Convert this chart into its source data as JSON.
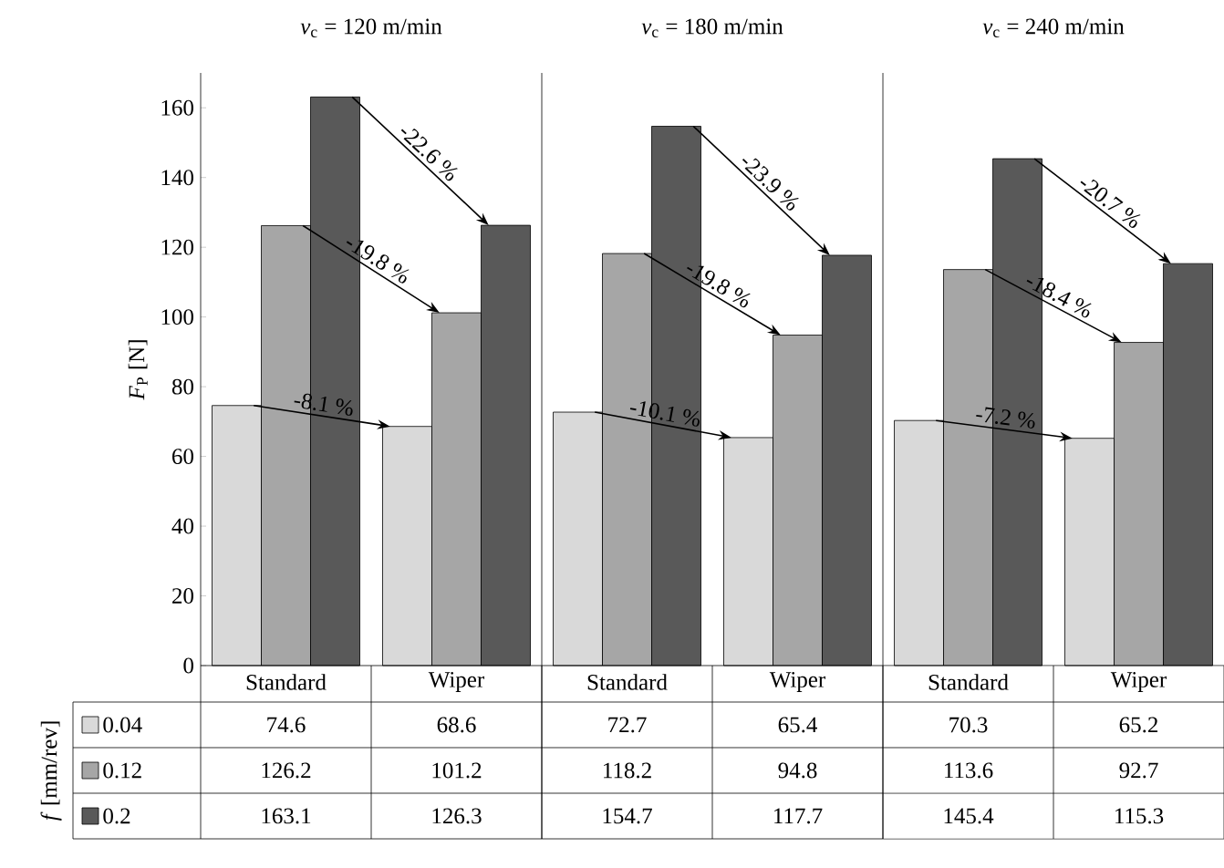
{
  "chart_data": [
    {
      "type": "bar",
      "title": "*v*$_{c}$ = 120 m/min",
      "ylabel": "*F*$_{P}$ [N]",
      "legend_title": "*f* [mm/rev]",
      "legend": "left",
      "data_labels": true,
      "categories": [
        "Standard",
        "Wiper"
      ],
      "ylim": [
        0,
        170
      ],
      "yticks": [
        0,
        20,
        40,
        60,
        80,
        100,
        120,
        140,
        160
      ],
      "series": [
        {
          "name": "0.04",
          "color": "#d9d9d9",
          "values": [
            74.6,
            68.6
          ]
        },
        {
          "name": "0.12",
          "color": "#a6a6a6",
          "values": [
            126.2,
            101.2
          ]
        },
        {
          "name": "0.2",
          "color": "#595959",
          "values": [
            163.1,
            126.3
          ]
        }
      ],
      "annotations": [
        "-8.1 %",
        "-19.8 %",
        "-22.6 %"
      ]
    },
    {
      "type": "bar",
      "title": "*v*$_{c}$ = 180 m/min",
      "data_labels": true,
      "tick_labels": "x",
      "categories": [
        "Standard",
        "Wiper"
      ],
      "ylim": [
        0,
        170
      ],
      "series": [
        {
          "color": "#d9d9d9",
          "values": [
            72.7,
            65.4
          ]
        },
        {
          "color": "#a6a6a6",
          "values": [
            118.2,
            94.8
          ]
        },
        {
          "color": "#595959",
          "values": [
            154.7,
            117.7
          ]
        }
      ],
      "annotations": [
        "-10.1 %",
        "-19.8 %",
        "-23.9 %"
      ]
    },
    {
      "type": "bar",
      "title": "*v*$_{c}$ = 240 m/min",
      "data_labels": true,
      "tick_labels": "x",
      "categories": [
        "Standard",
        "Wiper"
      ],
      "ylim": [
        0,
        170
      ],
      "series": [
        {
          "color": "#d9d9d9",
          "values": [
            70.3,
            65.2
          ]
        },
        {
          "color": "#a6a6a6",
          "values": [
            113.6,
            92.7
          ]
        },
        {
          "color": "#595959",
          "values": [
            145.4,
            115.3
          ]
        }
      ],
      "annotations": [
        "-7.2 %",
        "-18.4 %",
        "-20.7 %"
      ]
    }
  ]
}
